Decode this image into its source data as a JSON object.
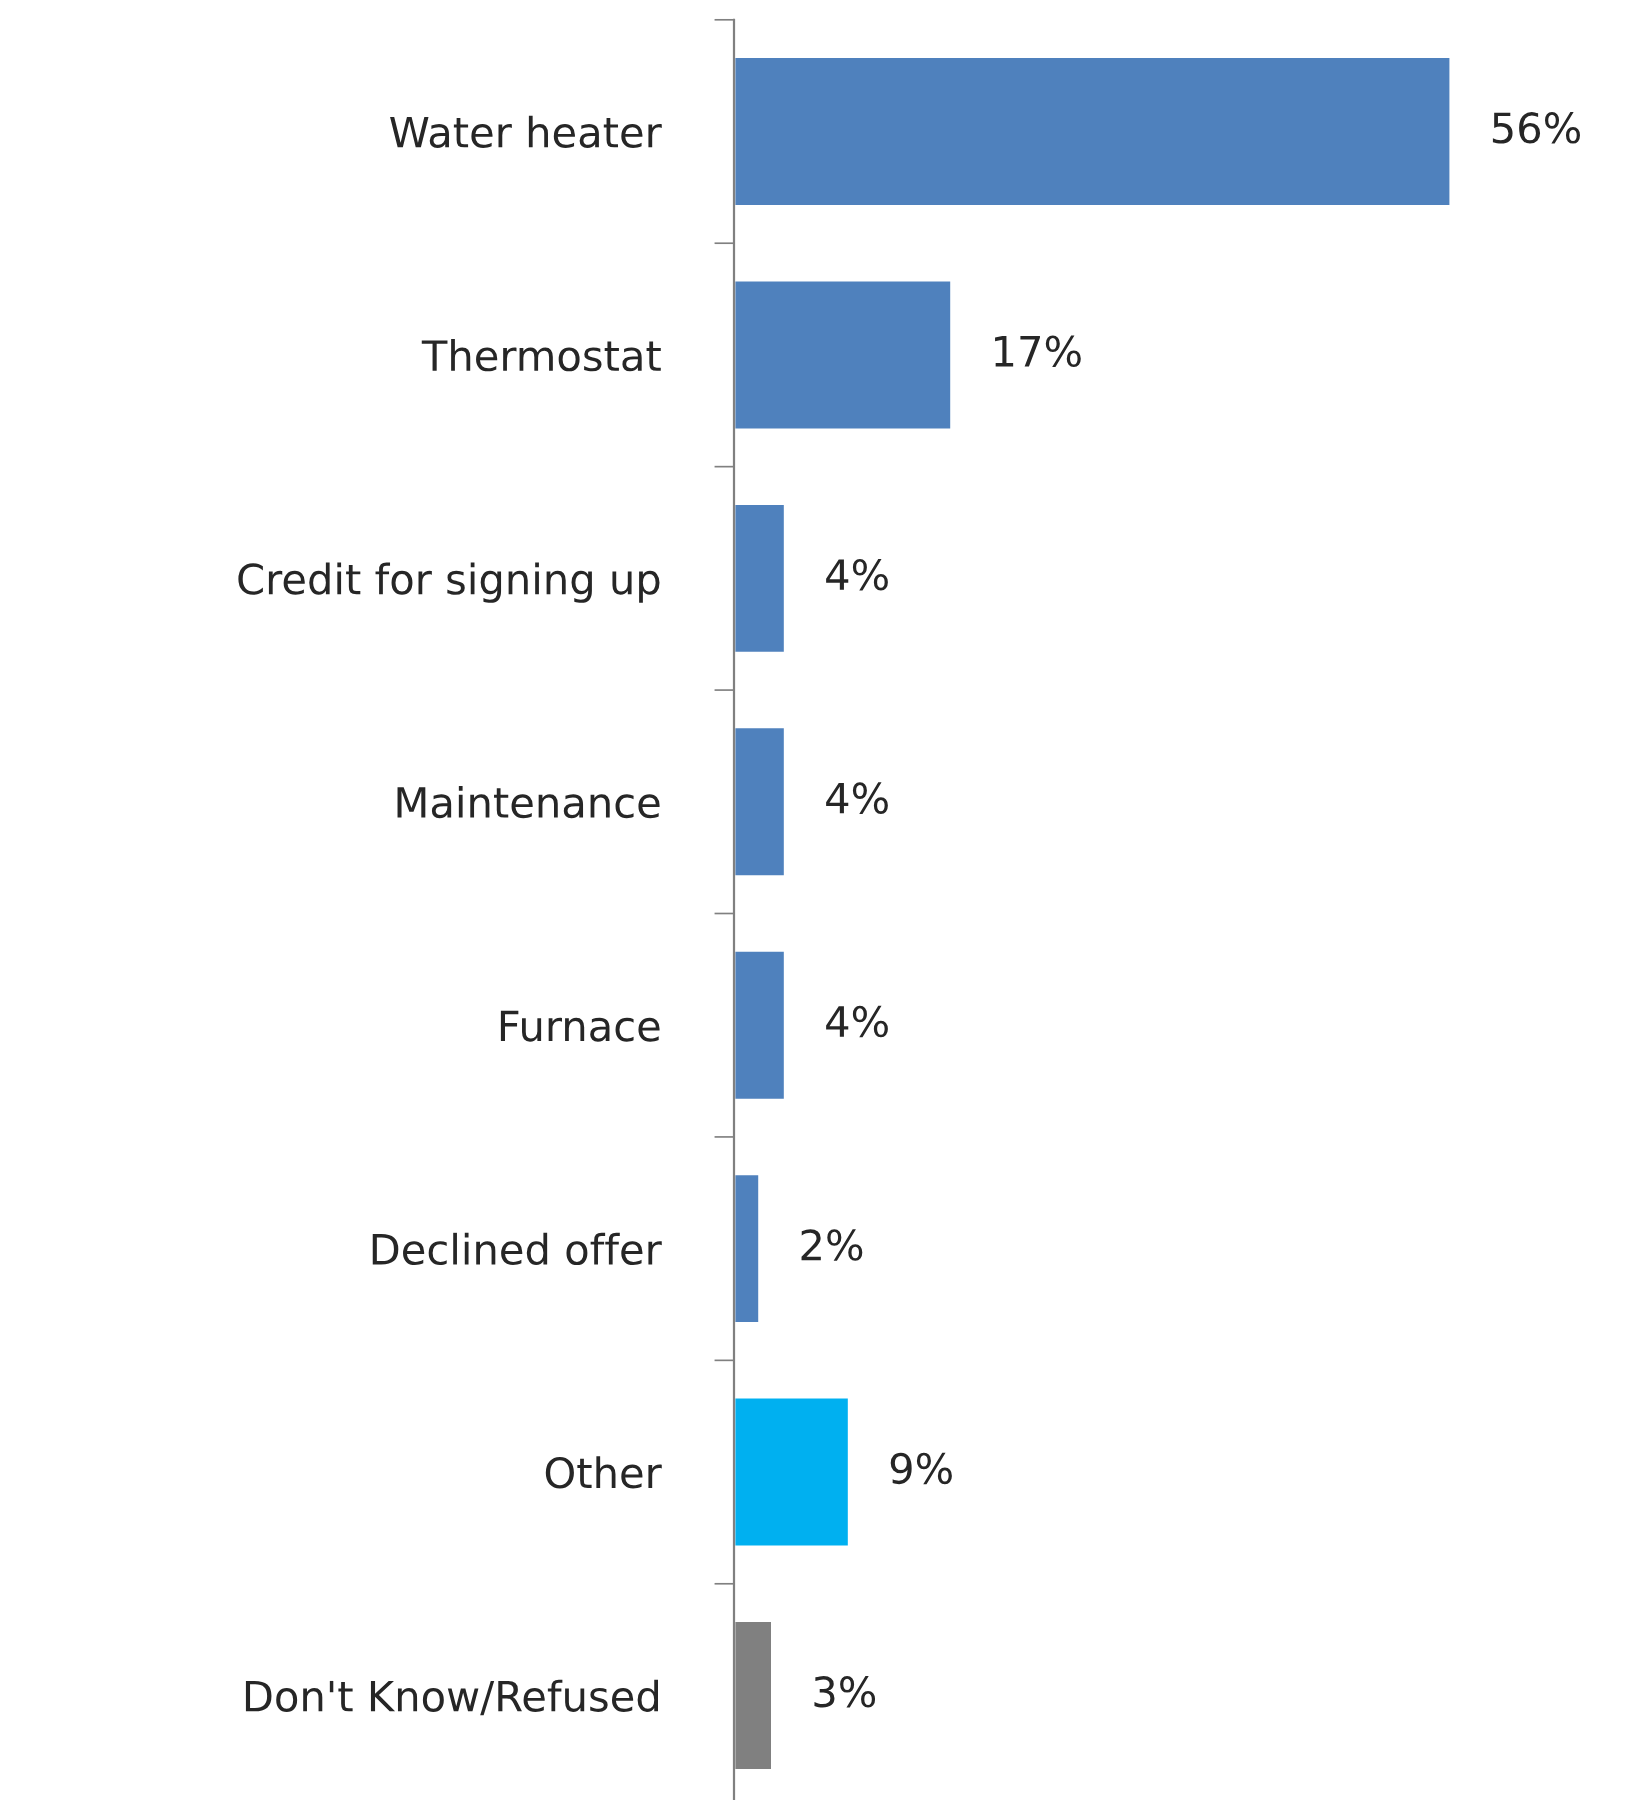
{
  "chart_data": {
    "type": "bar",
    "orientation": "horizontal",
    "categories": [
      "Water heater",
      "Thermostat",
      "Credit for signing up",
      "Maintenance",
      "Furnace",
      "Declined offer",
      "Other",
      "Don't Know/Refused"
    ],
    "values": [
      56,
      17,
      4,
      4,
      4,
      2,
      9,
      3
    ],
    "colors": [
      "#4f81bd",
      "#4f81bd",
      "#4f81bd",
      "#4f81bd",
      "#4f81bd",
      "#4f81bd",
      "#00b0f0",
      "#808080"
    ],
    "value_labels": [
      "56%",
      "17%",
      "4%",
      "4%",
      "4%",
      "2%",
      "9%",
      "3%"
    ],
    "grid": false,
    "legend": false
  }
}
